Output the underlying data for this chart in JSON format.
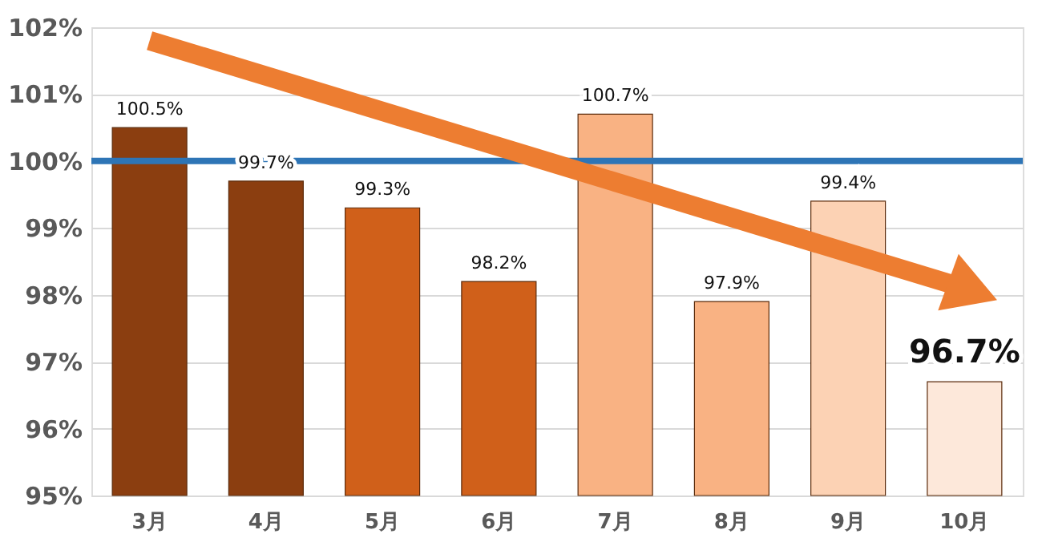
{
  "chart_data": {
    "type": "bar",
    "categories": [
      "3月",
      "4月",
      "5月",
      "6月",
      "7月",
      "8月",
      "9月",
      "10月"
    ],
    "series": [
      {
        "values": [
          100.5,
          99.7,
          99.3,
          98.2,
          100.7,
          97.9,
          99.4,
          96.7
        ],
        "colors": [
          "#8b3e10",
          "#8b3e10",
          "#d0601a",
          "#d0601a",
          "#f9b283",
          "#f9b283",
          "#fcd2b4",
          "#fde8da"
        ],
        "value_labels": [
          "100.5%",
          "99.7%",
          "99.3%",
          "98.2%",
          "100.7%",
          "97.9%",
          "99.4%",
          "96.7%"
        ]
      },
      {
        "type": "line",
        "x": [
          "3月",
          "10月"
        ],
        "values": [
          101.8,
          98.1
        ],
        "color": "#ed7d31"
      }
    ],
    "ylim": [
      95,
      102
    ],
    "yticks": [
      {
        "value": 95,
        "label": "95%"
      },
      {
        "value": 96,
        "label": "96%"
      },
      {
        "value": 97,
        "label": "97%"
      },
      {
        "value": 98,
        "label": "98%"
      },
      {
        "value": 99,
        "label": "99%"
      },
      {
        "value": 100,
        "label": "100%"
      },
      {
        "value": 101,
        "label": "101%"
      },
      {
        "value": 102,
        "label": "102%"
      }
    ],
    "ref_lines": [
      {
        "axis": "y",
        "value": 100,
        "color": "#2e75b6"
      }
    ],
    "grid": "y"
  }
}
